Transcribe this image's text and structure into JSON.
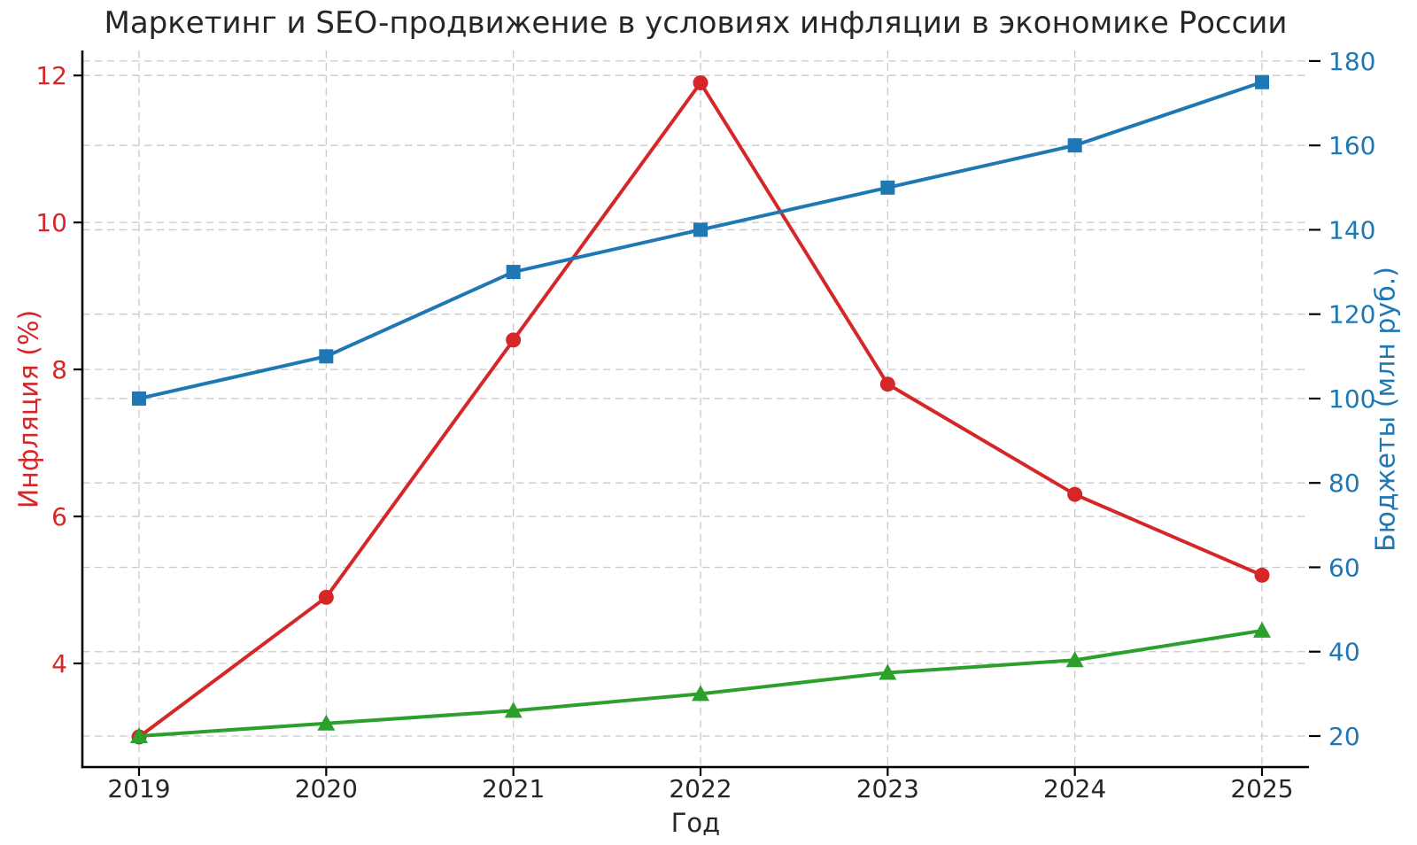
{
  "chart_data": {
    "type": "line",
    "title": "Маркетинг и SEO-продвижение в условиях инфляции в экономике России",
    "xlabel": "Год",
    "categories": [
      "2019",
      "2020",
      "2021",
      "2022",
      "2023",
      "2024",
      "2025"
    ],
    "grid": true,
    "legend": "none",
    "left_axis": {
      "label": "Инфляция (%)",
      "color": "#d62728",
      "ticks": [
        4,
        6,
        8,
        10,
        12
      ],
      "range": [
        2.59,
        12.34
      ]
    },
    "right_axis": {
      "label": "Бюджеты (млн руб.)",
      "color": "#1f77b4",
      "ticks": [
        20,
        40,
        60,
        80,
        100,
        120,
        140,
        160,
        180
      ],
      "range": [
        12.65,
        182.5
      ]
    },
    "series": [
      {
        "id": "inflation",
        "axis": "left",
        "marker": "circle",
        "color": "#d62728",
        "values": [
          3.0,
          4.9,
          8.4,
          11.9,
          7.8,
          6.3,
          5.2
        ]
      },
      {
        "id": "marketing-budgets",
        "axis": "right",
        "marker": "square",
        "color": "#1f77b4",
        "values": [
          100,
          110,
          130,
          140,
          150,
          160,
          175
        ]
      },
      {
        "id": "seo-budgets",
        "axis": "right",
        "marker": "triangle",
        "color": "#2ca02c",
        "values": [
          20,
          23,
          26,
          30,
          35,
          38,
          45
        ]
      }
    ]
  },
  "colors": {
    "title": "#262626",
    "x_tick": "#262626",
    "grid": "#c9c9c9",
    "spine": "#000000",
    "background": "#ffffff"
  }
}
